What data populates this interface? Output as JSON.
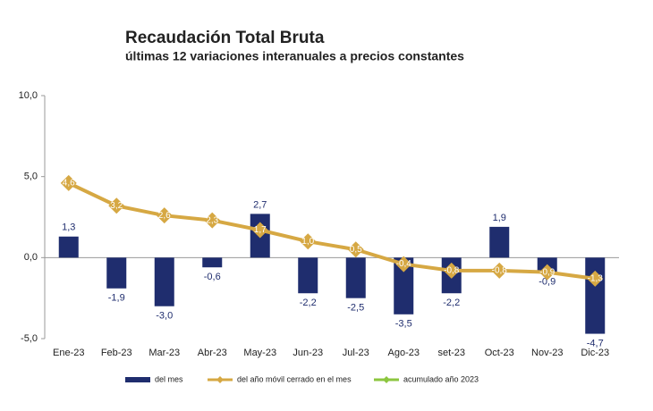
{
  "chart_data": {
    "type": "bar_line",
    "title": "Recaudación Total Bruta",
    "subtitle": "últimas 12 variaciones interanuales a precios constantes",
    "categories": [
      "Ene-23",
      "Feb-23",
      "Mar-23",
      "Abr-23",
      "May-23",
      "Jun-23",
      "Jul-23",
      "Ago-23",
      "set-23",
      "Oct-23",
      "Nov-23",
      "Dic-23"
    ],
    "series": [
      {
        "name": "del mes",
        "color": "#1f2d6e",
        "type": "bar",
        "values": [
          1.3,
          -1.9,
          -3.0,
          -0.6,
          2.7,
          -2.2,
          -2.5,
          -3.5,
          -2.2,
          1.9,
          -0.9,
          -4.7
        ],
        "value_labels": [
          "1,3",
          "-1,9",
          "-3,0",
          "-0,6",
          "2,7",
          "-2,2",
          "-2,5",
          "-3,5",
          "-2,2",
          "1,9",
          "-0,9",
          "-4,7"
        ]
      },
      {
        "name": "del año móvil cerrado en el mes",
        "color": "#d6a843",
        "type": "line",
        "values": [
          4.6,
          3.2,
          2.6,
          2.3,
          1.7,
          1.0,
          0.5,
          -0.4,
          -0.8,
          -0.8,
          -0.9,
          -1.3
        ],
        "value_labels": [
          "4,6",
          "3,2",
          "2,6",
          "2,3",
          "1,7",
          "1,0",
          "0,5",
          "-0,4",
          "-0,8",
          "-0,8",
          "-0,9",
          "-1,3"
        ]
      },
      {
        "name": "acumulado año 2023",
        "color": "#8cc63f",
        "type": "line",
        "values": [
          null,
          null,
          null,
          null,
          null,
          null,
          null,
          null,
          null,
          null,
          null,
          null
        ]
      }
    ],
    "ylim": [
      -5,
      10
    ],
    "yticks": [
      {
        "value": -5,
        "label": "-5,0"
      },
      {
        "value": 0,
        "label": "0,0"
      },
      {
        "value": 5,
        "label": "5,0"
      },
      {
        "value": 10,
        "label": "10,0"
      }
    ],
    "legend": "bottom"
  }
}
